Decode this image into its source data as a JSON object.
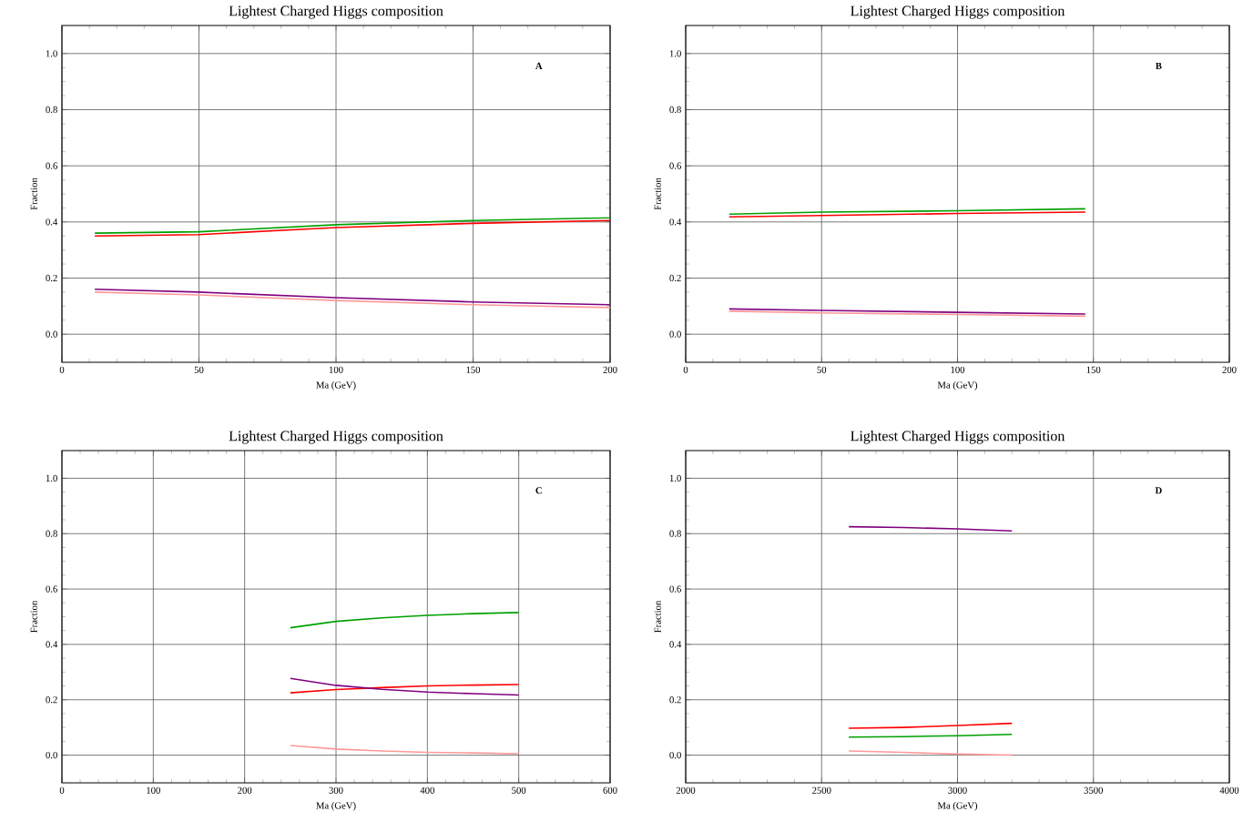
{
  "chart_data": [
    {
      "type": "line",
      "title": "Lightest Charged Higgs composition",
      "xlabel": "Ma (GeV)",
      "ylabel": "Fraction",
      "annotations": [
        "A"
      ],
      "grid": true,
      "xlim": [
        0,
        200
      ],
      "xticks": [
        0,
        50,
        100,
        150,
        200
      ],
      "ylim": [
        -0.1,
        1.1
      ],
      "yticks": [
        {
          "value": 0,
          "label": "0.0"
        },
        {
          "value": 0.2,
          "label": "0.2"
        },
        {
          "value": 0.4,
          "label": "0.4"
        },
        {
          "value": 0.6,
          "label": "0.6"
        },
        {
          "value": 0.8,
          "label": "0.8"
        },
        {
          "value": 1,
          "label": "1.0"
        }
      ],
      "x": [
        12,
        50,
        100,
        150,
        200
      ],
      "series": [
        {
          "color": "#00a000",
          "values": [
            0.36,
            0.365,
            0.39,
            0.405,
            0.415
          ]
        },
        {
          "color": "#ff0000",
          "values": [
            0.35,
            0.355,
            0.38,
            0.395,
            0.405
          ]
        },
        {
          "color": "#800080",
          "values": [
            0.16,
            0.15,
            0.13,
            0.115,
            0.105
          ]
        },
        {
          "color": "#ff9999",
          "values": [
            0.15,
            0.14,
            0.12,
            0.105,
            0.095
          ]
        }
      ]
    },
    {
      "type": "line",
      "title": "Lightest Charged Higgs composition",
      "xlabel": "Ma (GeV)",
      "ylabel": "Fraction",
      "annotations": [
        "B"
      ],
      "grid": true,
      "xlim": [
        0,
        200
      ],
      "xticks": [
        0,
        50,
        100,
        150,
        200
      ],
      "ylim": [
        -0.1,
        1.1
      ],
      "yticks": [
        {
          "value": 0,
          "label": "0.0"
        },
        {
          "value": 0.2,
          "label": "0.2"
        },
        {
          "value": 0.4,
          "label": "0.4"
        },
        {
          "value": 0.6,
          "label": "0.6"
        },
        {
          "value": 0.8,
          "label": "0.8"
        },
        {
          "value": 1,
          "label": "1.0"
        }
      ],
      "x": [
        16,
        50,
        100,
        147
      ],
      "series": [
        {
          "color": "#00a000",
          "values": [
            0.428,
            0.435,
            0.44,
            0.447
          ]
        },
        {
          "color": "#ff0000",
          "values": [
            0.418,
            0.423,
            0.43,
            0.435
          ]
        },
        {
          "color": "#800080",
          "values": [
            0.09,
            0.085,
            0.078,
            0.072
          ]
        },
        {
          "color": "#ff9999",
          "values": [
            0.082,
            0.076,
            0.07,
            0.064
          ]
        }
      ]
    },
    {
      "type": "line",
      "title": "Lightest Charged Higgs composition",
      "xlabel": "Ma (GeV)",
      "ylabel": "Fraction",
      "annotations": [
        "C"
      ],
      "grid": true,
      "xlim": [
        0,
        600
      ],
      "xticks": [
        0,
        100,
        200,
        300,
        400,
        500,
        600
      ],
      "ylim": [
        -0.1,
        1.1
      ],
      "yticks": [
        {
          "value": 0,
          "label": "0.0"
        },
        {
          "value": 0.2,
          "label": "0.2"
        },
        {
          "value": 0.4,
          "label": "0.4"
        },
        {
          "value": 0.6,
          "label": "0.6"
        },
        {
          "value": 0.8,
          "label": "0.8"
        },
        {
          "value": 1,
          "label": "1.0"
        }
      ],
      "x": [
        250,
        300,
        350,
        400,
        450,
        500
      ],
      "series": [
        {
          "color": "#00a000",
          "values": [
            0.46,
            0.483,
            0.496,
            0.505,
            0.511,
            0.515
          ]
        },
        {
          "color": "#ff0000",
          "values": [
            0.225,
            0.237,
            0.244,
            0.25,
            0.253,
            0.255
          ]
        },
        {
          "color": "#800080",
          "values": [
            0.277,
            0.252,
            0.238,
            0.228,
            0.222,
            0.217
          ]
        },
        {
          "color": "#ff9999",
          "values": [
            0.035,
            0.022,
            0.015,
            0.01,
            0.008,
            0.005
          ]
        }
      ]
    },
    {
      "type": "line",
      "title": "Lightest Charged Higgs composition",
      "xlabel": "Ma (GeV)",
      "ylabel": "Fraction",
      "annotations": [
        "D"
      ],
      "grid": true,
      "xlim": [
        2000,
        4000
      ],
      "xticks": [
        2000,
        2500,
        3000,
        3500,
        4000
      ],
      "ylim": [
        -0.1,
        1.1
      ],
      "yticks": [
        {
          "value": 0,
          "label": "0.0"
        },
        {
          "value": 0.2,
          "label": "0.2"
        },
        {
          "value": 0.4,
          "label": "0.4"
        },
        {
          "value": 0.6,
          "label": "0.6"
        },
        {
          "value": 0.8,
          "label": "0.8"
        },
        {
          "value": 1,
          "label": "1.0"
        }
      ],
      "x": [
        2600,
        2800,
        3000,
        3200
      ],
      "series": [
        {
          "color": "#800080",
          "values": [
            0.825,
            0.822,
            0.817,
            0.81
          ]
        },
        {
          "color": "#ff0000",
          "values": [
            0.097,
            0.1,
            0.107,
            0.115
          ]
        },
        {
          "color": "#00a000",
          "values": [
            0.065,
            0.067,
            0.07,
            0.075
          ]
        },
        {
          "color": "#ff9999",
          "values": [
            0.015,
            0.01,
            0.004,
            0.0
          ]
        }
      ]
    }
  ]
}
